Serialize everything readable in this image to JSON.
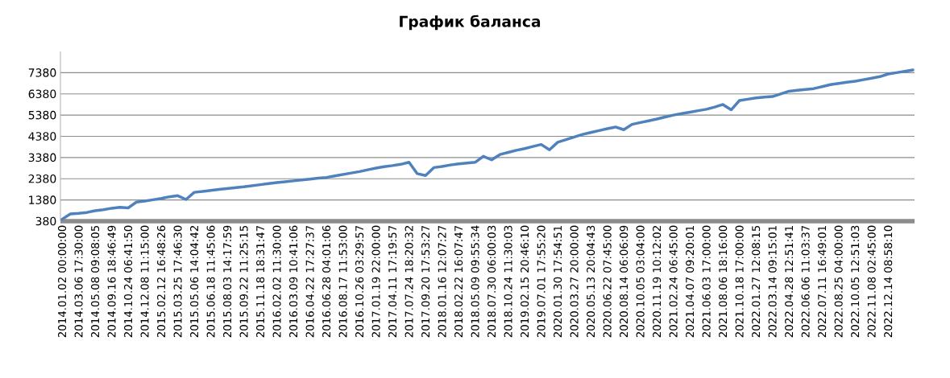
{
  "chart_data": {
    "type": "line",
    "title": "График баланса",
    "categories": [
      "2014.01.02 00:00:00",
      null,
      "2014.03.06 17:30:00",
      null,
      "2014.05.08 09:08:05",
      null,
      "2014.09.16 18:46:49",
      null,
      "2014.10.24 06:41:50",
      null,
      "2014.12.08 11:15:00",
      null,
      "2015.02.12 16:48:26",
      null,
      "2015.03.25 17:46:30",
      null,
      "2015.05.06 14:04:42",
      null,
      "2015.06.18 11:45:06",
      null,
      "2015.08.03 14:17:59",
      null,
      "2015.09.22 11:25:15",
      null,
      "2015.11.18 18:31:47",
      null,
      "2016.02.02 11:30:00",
      null,
      "2016.03.09 10:41:06",
      null,
      "2016.04.22 17:27:37",
      null,
      "2016.06.28 04:01:06",
      null,
      "2016.08.17 11:53:00",
      null,
      "2016.10.26 03:29:57",
      null,
      "2017.01.19 22:00:00",
      null,
      "2017.04.11 17:19:57",
      null,
      "2017.07.24 18:20:32",
      null,
      "2017.09.20 17:53:27",
      null,
      "2018.01.16 12:07:27",
      null,
      "2018.02.22 16:07:47",
      null,
      "2018.05.09 09:55:34",
      null,
      "2018.07.30 06:00:03",
      null,
      "2018.10.24 11:30:03",
      null,
      "2019.02.15 20:46:10",
      null,
      "2019.07.01 17:55:20",
      null,
      "2020.01.30 17:54:51",
      null,
      "2020.03.27 20:00:00",
      null,
      "2020.05.13 20:04:43",
      null,
      "2020.06.22 07:45:00",
      null,
      "2020.08.14 06:06:09",
      null,
      "2020.10.05 03:04:00",
      null,
      "2020.11.19 10:12:02",
      null,
      "2021.02.24 06:45:00",
      null,
      "2021.04.07 09:20:01",
      null,
      "2021.06.03 17:00:00",
      null,
      "2021.08.06 18:16:00",
      null,
      "2021.10.18 17:00:00",
      null,
      "2022.01.27 12:08:15",
      null,
      "2022.03.14 09:15:01",
      null,
      "2022.04.28 12:51:41",
      null,
      "2022.06.06 11:03:37",
      null,
      "2022.07.11 16:49:01",
      null,
      "2022.08.25 04:00:00",
      null,
      "2022.10.05 12:51:03",
      null,
      "2022.11.08 02:45:00",
      null,
      "2022.12.14 08:58:10",
      null,
      null,
      null
    ],
    "values": [
      470,
      720,
      750,
      790,
      870,
      920,
      990,
      1030,
      1005,
      1280,
      1330,
      1390,
      1450,
      1530,
      1580,
      1405,
      1740,
      1780,
      1830,
      1880,
      1920,
      1960,
      2000,
      2050,
      2100,
      2155,
      2200,
      2240,
      2280,
      2320,
      2360,
      2405,
      2440,
      2510,
      2580,
      2650,
      2715,
      2800,
      2880,
      2950,
      3000,
      3060,
      3155,
      2620,
      2530,
      2905,
      2960,
      3030,
      3080,
      3120,
      3155,
      3440,
      3270,
      3520,
      3620,
      3720,
      3800,
      3900,
      3995,
      3745,
      4100,
      4220,
      4350,
      4470,
      4560,
      4650,
      4740,
      4820,
      4693,
      4945,
      5030,
      5110,
      5193,
      5290,
      5380,
      5450,
      5520,
      5590,
      5655,
      5760,
      5880,
      5630,
      6068,
      6130,
      6190,
      6230,
      6255,
      6380,
      6505,
      6550,
      6590,
      6630,
      6720,
      6818,
      6870,
      6930,
      6980,
      7050,
      7120,
      7193,
      7318,
      7380,
      7440,
      7505
    ],
    "color": "#4f81bd",
    "line_style": "solid",
    "marker": "none",
    "grid": "y",
    "ylim": [
      380,
      8380
    ],
    "yticks": [
      380,
      1380,
      2380,
      3380,
      4380,
      5380,
      6380,
      7380
    ]
  }
}
